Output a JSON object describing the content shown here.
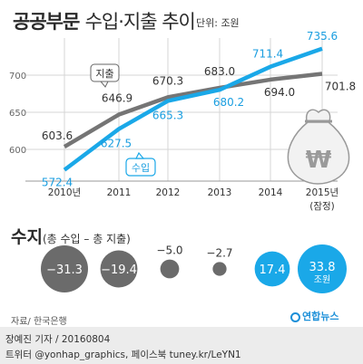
{
  "title_strong": "공공부문",
  "title_light": "수입·지출 추이",
  "unit_label": "단위: 조원",
  "chart_data": {
    "type": "line",
    "title": "공공부문 수입·지출 추이",
    "unit": "단위: 조원",
    "categories": [
      "2010년",
      "2011",
      "2012",
      "2013",
      "2014",
      "2015년"
    ],
    "category_note": "(잠정)",
    "ylim": [
      600,
      750
    ],
    "yticks": [
      600,
      650,
      700
    ],
    "grid": true,
    "series": [
      {
        "name": "지출",
        "values": [
          603.6,
          646.9,
          670.3,
          683.0,
          694.0,
          701.8
        ],
        "color": "#757575"
      },
      {
        "name": "수입",
        "values": [
          572.4,
          627.5,
          665.3,
          680.2,
          711.4,
          735.6
        ],
        "color": "#1aa8e8"
      }
    ],
    "value_labels": {
      "지출": [
        "603.6",
        "646.9",
        "670.3",
        "683.0",
        "694.0",
        "701.8"
      ],
      "수입": [
        "572.4",
        "627.5",
        "665.3",
        "680.2",
        "711.4",
        "735.6"
      ]
    }
  },
  "surplus": {
    "title": "수지",
    "subtitle": "(총 수입 – 총 지출)",
    "values": [
      -31.3,
      -19.4,
      -5.0,
      -2.7,
      17.4,
      33.8
    ],
    "labels": [
      "−31.3",
      "−19.4",
      "−5.0",
      "−2.7",
      "17.4",
      "33.8"
    ],
    "last_unit": "조원",
    "negative_color": "#6b6b6b",
    "positive_color": "#1aa8e8"
  },
  "source": "자료/ 한국은행",
  "logo_text": "연합뉴스",
  "credit_line1": "장예진 기자 / 20160804",
  "credit_line2": "트위터 @yonhap_graphics, 페이스북 tuney.kr/LeYN1"
}
